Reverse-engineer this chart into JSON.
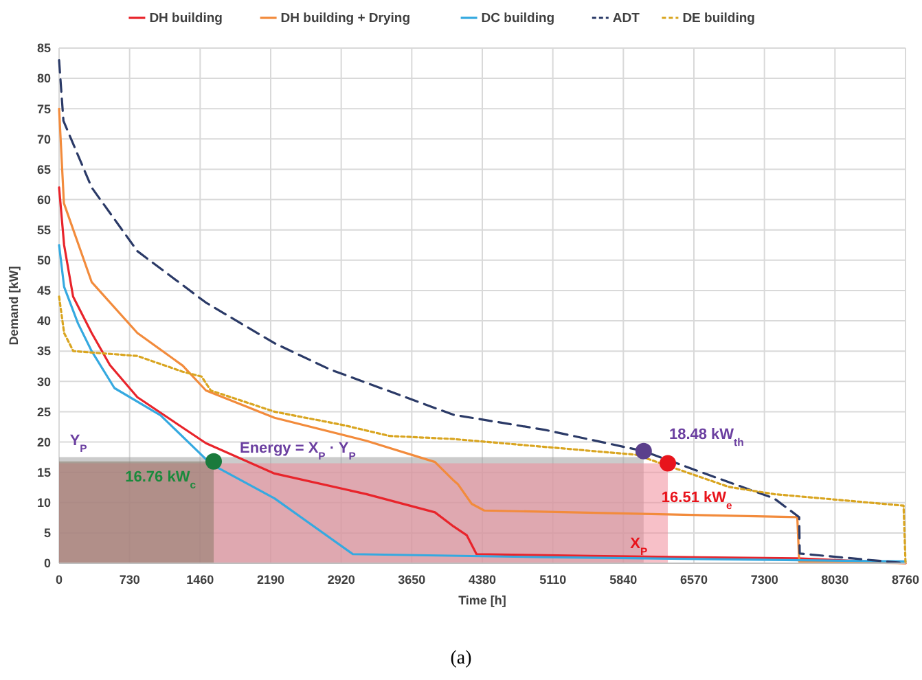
{
  "chart_data": {
    "type": "line",
    "xlabel": "Time [h]",
    "ylabel": "Demand [kW]",
    "xlim": [
      0,
      8760
    ],
    "xticks": [
      0,
      730,
      1460,
      2190,
      2920,
      3650,
      4380,
      5110,
      5840,
      6570,
      7300,
      8030,
      8760
    ],
    "ylim": [
      0,
      85
    ],
    "yticks": [
      0,
      5,
      10,
      15,
      20,
      25,
      30,
      35,
      40,
      45,
      50,
      55,
      60,
      65,
      70,
      75,
      80,
      85
    ],
    "grid": true,
    "legend": "top",
    "series": [
      {
        "type": "area",
        "color": "#a0a0a0",
        "x": [
          0,
          6050
        ],
        "values": [
          17.5,
          17.5
        ]
      },
      {
        "type": "area",
        "color": "#f08c9a",
        "x": [
          0,
          6300
        ],
        "values": [
          16.5,
          16.5
        ]
      },
      {
        "type": "area",
        "color": "#8a7a6a",
        "x": [
          0,
          1600
        ],
        "values": [
          16.8,
          16.8
        ]
      },
      {
        "name": "DH building",
        "color": "#e8242b",
        "line_style": "solid",
        "x": [
          0,
          52,
          145,
          337,
          526,
          810,
          1520,
          2230,
          3180,
          3890,
          4080,
          4220,
          4320,
          5500,
          7640,
          8760
        ],
        "values": [
          62,
          52.5,
          44,
          38,
          32.7,
          27.4,
          19.8,
          14.8,
          11.4,
          8.4,
          6.1,
          4.6,
          1.5,
          1.2,
          0.8,
          0
        ]
      },
      {
        "name": "DH building + Drying",
        "color": "#f28b3c",
        "line_style": "solid",
        "x": [
          0,
          50,
          337,
          810,
          1280,
          1520,
          2230,
          3180,
          3890,
          4080,
          4130,
          4270,
          4400,
          7640,
          7660,
          8760
        ],
        "values": [
          75,
          59.4,
          46.4,
          38,
          32.6,
          28.5,
          24,
          20.2,
          16.7,
          13.7,
          13,
          9.8,
          8.7,
          7.6,
          0.3,
          0
        ]
      },
      {
        "name": "DC building",
        "color": "#35a9e0",
        "line_style": "solid",
        "x": [
          0,
          52,
          195,
          337,
          573,
          1050,
          1570,
          2230,
          3040,
          5000,
          8760
        ],
        "values": [
          52.5,
          45.6,
          39.6,
          35,
          28.9,
          24.4,
          16.4,
          10.7,
          1.5,
          1,
          0.3
        ]
      },
      {
        "name": "ADT",
        "color": "#2b3a67",
        "line_style": "dashed",
        "x": [
          0,
          45,
          337,
          810,
          1520,
          2230,
          2800,
          4080,
          5030,
          6050,
          6735,
          7400,
          7660,
          7665,
          8760
        ],
        "values": [
          83,
          73,
          62,
          51.5,
          43,
          36.3,
          32,
          24.5,
          22,
          18.5,
          14.5,
          10.7,
          7.6,
          1.6,
          0
        ]
      },
      {
        "name": "DE building",
        "color": "#d9a520",
        "line_style": "dotted",
        "x": [
          0,
          52,
          147,
          810,
          1280,
          1475,
          1570,
          2230,
          2940,
          3420,
          4080,
          5970,
          6930,
          7400,
          8740,
          8760
        ],
        "values": [
          44,
          38,
          35,
          34.2,
          31.6,
          30.8,
          28.5,
          25,
          22.8,
          21,
          20.5,
          17.9,
          12.6,
          11.4,
          9.5,
          0
        ]
      },
      {
        "type": "scatter",
        "marker": "circle",
        "colors": [
          "#1a7a3c",
          "#5b3f8c",
          "#e8141c"
        ],
        "x": [
          1600,
          6050,
          6300
        ],
        "values": [
          16.8,
          18.5,
          16.5
        ]
      }
    ],
    "annotations": [
      {
        "text": "Energy = X$_{P}$ · Y$_{P}$",
        "x": 2470,
        "y": 18.3
      },
      "Y$_{P}$",
      "16.76 kW$_{c}$",
      "18.48 kW$_{th}$",
      "16.51 kW$_{e}$",
      {
        "text": "X$_{P}$",
        "x": 6000,
        "y": 2.5
      },
      "(a)"
    ]
  }
}
